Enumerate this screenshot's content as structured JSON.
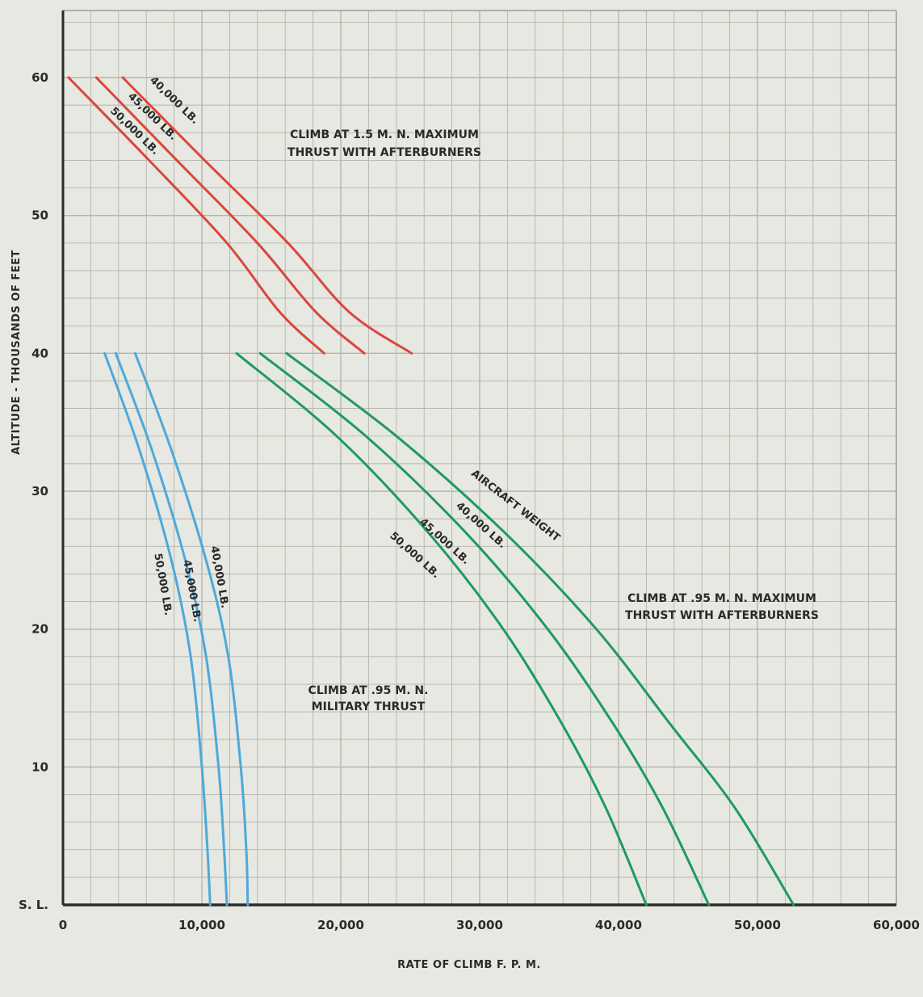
{
  "chart_data": {
    "type": "line",
    "xlabel": "RATE OF CLIMB F. P. M.",
    "ylabel": "ALTITUDE - THOUSANDS OF FEET",
    "xlim": [
      0,
      60000
    ],
    "ylim": [
      0,
      64
    ],
    "x_ticks": [
      {
        "value": 0,
        "label": "0"
      },
      {
        "value": 10000,
        "label": "10,000"
      },
      {
        "value": 20000,
        "label": "20,000"
      },
      {
        "value": 30000,
        "label": "30,000"
      },
      {
        "value": 40000,
        "label": "40,000"
      },
      {
        "value": 50000,
        "label": "50,000"
      },
      {
        "value": 60000,
        "label": "60,000"
      }
    ],
    "y_ticks": [
      {
        "value": 0,
        "label": "S. L."
      },
      {
        "value": 10,
        "label": "10"
      },
      {
        "value": 20,
        "label": "20"
      },
      {
        "value": 30,
        "label": "30"
      },
      {
        "value": 40,
        "label": "40"
      },
      {
        "value": 50,
        "label": "50"
      },
      {
        "value": 60,
        "label": "60"
      }
    ],
    "grid": true,
    "colors": {
      "red": "#d9473e",
      "blue": "#4fa8da",
      "green": "#1f9a5e",
      "grid": "#b3b5ae",
      "axis": "#2a2a2a"
    },
    "groups": [
      {
        "id": "afterburner-1-5",
        "color": "red",
        "annotation": [
          "CLIMB AT 1.5 M. N. MAXIMUM",
          "THRUST WITH AFTERBURNERS"
        ],
        "series": [
          {
            "label": "40,000 LB.",
            "points": [
              [
                4300,
                60
              ],
              [
                10200,
                54
              ],
              [
                16200,
                48
              ],
              [
                20600,
                43
              ],
              [
                25100,
                40
              ]
            ]
          },
          {
            "label": "45,000 LB.",
            "points": [
              [
                2400,
                60
              ],
              [
                8200,
                54
              ],
              [
                14000,
                48
              ],
              [
                18200,
                43
              ],
              [
                21700,
                40
              ]
            ]
          },
          {
            "label": "50,000 LB.",
            "points": [
              [
                400,
                60
              ],
              [
                6200,
                54
              ],
              [
                11800,
                48
              ],
              [
                15600,
                43
              ],
              [
                18800,
                40
              ]
            ]
          }
        ]
      },
      {
        "id": "military",
        "color": "blue",
        "annotation": [
          "CLIMB AT .95 M. N.",
          "MILITARY THRUST"
        ],
        "series": [
          {
            "label": "40,000 LB.",
            "points": [
              [
                5200,
                40
              ],
              [
                7800,
                33
              ],
              [
                10300,
                25
              ],
              [
                11900,
                18
              ],
              [
                12800,
                10
              ],
              [
                13200,
                4
              ],
              [
                13300,
                0
              ]
            ]
          },
          {
            "label": "45,000 LB.",
            "points": [
              [
                3800,
                40
              ],
              [
                6400,
                33
              ],
              [
                8800,
                25
              ],
              [
                10300,
                18
              ],
              [
                11200,
                10
              ],
              [
                11600,
                4
              ],
              [
                11800,
                0
              ]
            ]
          },
          {
            "label": "50,000 LB.",
            "points": [
              [
                3000,
                40
              ],
              [
                5500,
                33
              ],
              [
                7800,
                25
              ],
              [
                9200,
                18
              ],
              [
                10000,
                10
              ],
              [
                10400,
                4
              ],
              [
                10600,
                0
              ]
            ]
          }
        ]
      },
      {
        "id": "afterburner-95",
        "color": "green",
        "annotation": [
          "CLIMB AT .95 M. N. MAXIMUM",
          "THRUST WITH AFTERBURNERS"
        ],
        "series": [
          {
            "label": "40,000 LB.",
            "points": [
              [
                16100,
                40
              ],
              [
                24000,
                34
              ],
              [
                31800,
                27
              ],
              [
                38400,
                20
              ],
              [
                43800,
                13
              ],
              [
                48400,
                7
              ],
              [
                52600,
                0
              ]
            ]
          },
          {
            "label": "45,000 LB.",
            "points": [
              [
                14200,
                40
              ],
              [
                21800,
                34
              ],
              [
                29000,
                27
              ],
              [
                34900,
                20
              ],
              [
                39700,
                13
              ],
              [
                43200,
                7
              ],
              [
                46500,
                0
              ]
            ]
          },
          {
            "label": "50,000 LB.",
            "points": [
              [
                12500,
                40
              ],
              [
                19700,
                34
              ],
              [
                26300,
                27
              ],
              [
                31700,
                20
              ],
              [
                36000,
                13
              ],
              [
                39100,
                7
              ],
              [
                42000,
                0
              ]
            ]
          }
        ]
      }
    ],
    "weight_caption": "AIRCRAFT WEIGHT"
  }
}
